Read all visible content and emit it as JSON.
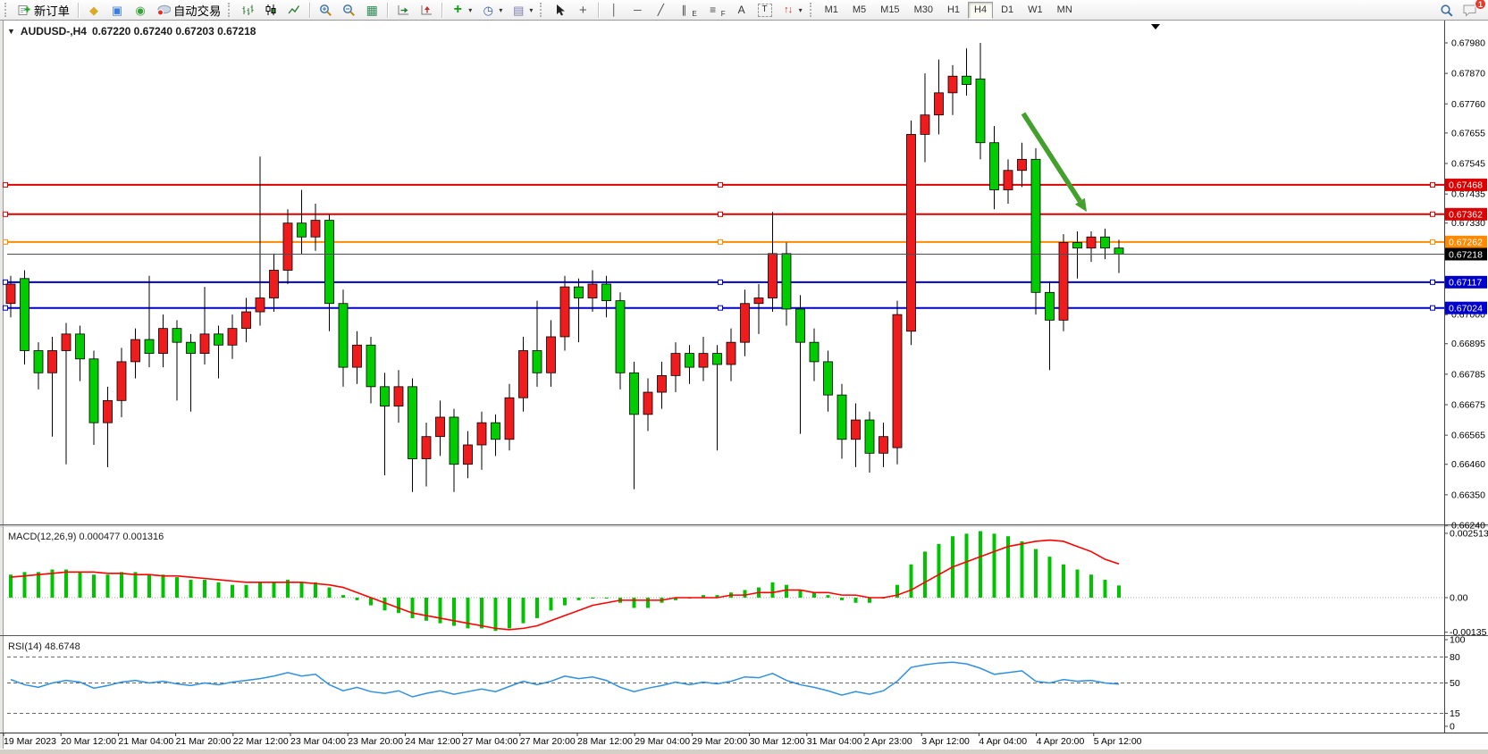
{
  "toolbar": {
    "new_order_label": "新订单",
    "auto_trading_label": "自动交易",
    "timeframes": [
      "M1",
      "M5",
      "M15",
      "M30",
      "H1",
      "H4",
      "D1",
      "W1",
      "MN"
    ],
    "active_timeframe": "H4",
    "notification_count": "1",
    "tool_letters": {
      "channel": "E",
      "fibonacci": "F",
      "text": "A",
      "label": "T"
    }
  },
  "chart": {
    "title_symbol": "AUDUSD-,H4",
    "title_ohlc": "0.67220 0.67240 0.67203 0.67218"
  },
  "indicators": {
    "macd_label": "MACD(12,26,9) 0.000477 0.001316",
    "rsi_label": "RSI(14) 48.6748"
  },
  "chart_data": {
    "type": "candlestick",
    "symbol": "AUDUSD-",
    "period": "H4",
    "current_bar": {
      "open": 0.6722,
      "high": 0.6724,
      "low": 0.67203,
      "close": 0.67218
    },
    "price_axis_ticks": [
      "0.67980",
      "0.67870",
      "0.67760",
      "0.67655",
      "0.67545",
      "0.67435",
      "0.67330",
      "0.67000",
      "0.66895",
      "0.66785",
      "0.66675",
      "0.66565",
      "0.66460",
      "0.66350",
      "0.66240"
    ],
    "time_axis_labels": [
      "19 Mar 2023",
      "20 Mar 12:00",
      "21 Mar 04:00",
      "21 Mar 20:00",
      "22 Mar 12:00",
      "23 Mar 04:00",
      "23 Mar 20:00",
      "24 Mar 12:00",
      "27 Mar 04:00",
      "27 Mar 20:00",
      "28 Mar 12:00",
      "29 Mar 04:00",
      "29 Mar 20:00",
      "30 Mar 12:00",
      "31 Mar 04:00",
      "2 Apr 23:00",
      "3 Apr 12:00",
      "4 Apr 04:00",
      "4 Apr 20:00",
      "5 Apr 12:00"
    ],
    "colors": {
      "bull": "#ee1c1c",
      "bear": "#0c0",
      "wick": "#000000",
      "resistance": "#dd0000",
      "pivot": "#ff8a00",
      "support": "#0000cc",
      "price_line": "#4d4d4d",
      "macd_histogram": "#00c400",
      "macd_signal": "#ff0000",
      "rsi_line": "#3090e0",
      "arrow": "#44a02c"
    },
    "candles": [
      [
        0.6704,
        0.6714,
        0.6699,
        0.6711
      ],
      [
        0.6713,
        0.6716,
        0.6682,
        0.6687
      ],
      [
        0.6687,
        0.669,
        0.6673,
        0.6679
      ],
      [
        0.6679,
        0.6692,
        0.6656,
        0.6687
      ],
      [
        0.6687,
        0.6697,
        0.6646,
        0.6693
      ],
      [
        0.6693,
        0.6696,
        0.6676,
        0.6684
      ],
      [
        0.6684,
        0.6687,
        0.6653,
        0.6661
      ],
      [
        0.6661,
        0.6674,
        0.6645,
        0.6669
      ],
      [
        0.6669,
        0.6688,
        0.6663,
        0.6683
      ],
      [
        0.6683,
        0.6695,
        0.6677,
        0.6691
      ],
      [
        0.6691,
        0.6714,
        0.6681,
        0.6686
      ],
      [
        0.6686,
        0.67,
        0.6681,
        0.6695
      ],
      [
        0.6695,
        0.6698,
        0.6669,
        0.669
      ],
      [
        0.669,
        0.6693,
        0.6665,
        0.6686
      ],
      [
        0.6686,
        0.671,
        0.6682,
        0.6693
      ],
      [
        0.6693,
        0.6696,
        0.6677,
        0.6689
      ],
      [
        0.6689,
        0.67,
        0.6684,
        0.6695
      ],
      [
        0.6695,
        0.6706,
        0.669,
        0.6701
      ],
      [
        0.6701,
        0.6757,
        0.6696,
        0.6706
      ],
      [
        0.6706,
        0.6722,
        0.6701,
        0.6716
      ],
      [
        0.6716,
        0.6738,
        0.6711,
        0.6733
      ],
      [
        0.6733,
        0.6745,
        0.6722,
        0.6728
      ],
      [
        0.6728,
        0.674,
        0.6723,
        0.6734
      ],
      [
        0.6734,
        0.6736,
        0.6694,
        0.6704
      ],
      [
        0.6704,
        0.6709,
        0.6674,
        0.6681
      ],
      [
        0.6681,
        0.6694,
        0.6675,
        0.6689
      ],
      [
        0.6689,
        0.6692,
        0.6668,
        0.6674
      ],
      [
        0.6674,
        0.6679,
        0.6642,
        0.6667
      ],
      [
        0.6667,
        0.668,
        0.6661,
        0.6674
      ],
      [
        0.6674,
        0.6677,
        0.6636,
        0.6648
      ],
      [
        0.6648,
        0.6661,
        0.6638,
        0.6656
      ],
      [
        0.6656,
        0.6669,
        0.6649,
        0.6663
      ],
      [
        0.6663,
        0.6666,
        0.6636,
        0.6646
      ],
      [
        0.6646,
        0.6658,
        0.6641,
        0.6653
      ],
      [
        0.6653,
        0.6665,
        0.6644,
        0.6661
      ],
      [
        0.6661,
        0.6664,
        0.6649,
        0.6655
      ],
      [
        0.6655,
        0.6675,
        0.6651,
        0.667
      ],
      [
        0.667,
        0.6692,
        0.6665,
        0.6687
      ],
      [
        0.6687,
        0.6705,
        0.6674,
        0.6679
      ],
      [
        0.6679,
        0.6698,
        0.6674,
        0.6692
      ],
      [
        0.6692,
        0.6714,
        0.6687,
        0.671
      ],
      [
        0.671,
        0.6713,
        0.669,
        0.6706
      ],
      [
        0.6706,
        0.6716,
        0.6701,
        0.6711
      ],
      [
        0.6711,
        0.6714,
        0.6699,
        0.6705
      ],
      [
        0.6705,
        0.6708,
        0.6673,
        0.6679
      ],
      [
        0.6679,
        0.6683,
        0.6637,
        0.6664
      ],
      [
        0.6664,
        0.6677,
        0.6658,
        0.6672
      ],
      [
        0.6672,
        0.6683,
        0.6666,
        0.6678
      ],
      [
        0.6678,
        0.669,
        0.6672,
        0.6686
      ],
      [
        0.6686,
        0.6689,
        0.6675,
        0.6681
      ],
      [
        0.6681,
        0.6692,
        0.6676,
        0.6686
      ],
      [
        0.6686,
        0.6689,
        0.6651,
        0.6682
      ],
      [
        0.6682,
        0.6695,
        0.6676,
        0.669
      ],
      [
        0.669,
        0.6709,
        0.6685,
        0.6704
      ],
      [
        0.6704,
        0.6711,
        0.6693,
        0.6706
      ],
      [
        0.6706,
        0.6737,
        0.6701,
        0.6722
      ],
      [
        0.6722,
        0.6726,
        0.6696,
        0.6702
      ],
      [
        0.6702,
        0.6707,
        0.6657,
        0.669
      ],
      [
        0.669,
        0.6695,
        0.6676,
        0.6683
      ],
      [
        0.6683,
        0.6687,
        0.6665,
        0.6671
      ],
      [
        0.6671,
        0.6675,
        0.6648,
        0.6655
      ],
      [
        0.6655,
        0.6668,
        0.6645,
        0.6662
      ],
      [
        0.6662,
        0.6665,
        0.6643,
        0.665
      ],
      [
        0.665,
        0.6661,
        0.6645,
        0.6656
      ],
      [
        0.6652,
        0.6705,
        0.6646,
        0.67
      ],
      [
        0.6694,
        0.677,
        0.6689,
        0.6765
      ],
      [
        0.6765,
        0.6787,
        0.6755,
        0.6772
      ],
      [
        0.6772,
        0.6792,
        0.6765,
        0.678
      ],
      [
        0.678,
        0.679,
        0.6772,
        0.6786
      ],
      [
        0.6786,
        0.6796,
        0.6779,
        0.6783
      ],
      [
        0.6785,
        0.6798,
        0.6756,
        0.6762
      ],
      [
        0.6762,
        0.6768,
        0.6738,
        0.6745
      ],
      [
        0.6745,
        0.6756,
        0.674,
        0.6752
      ],
      [
        0.6752,
        0.6762,
        0.6746,
        0.6756
      ],
      [
        0.6756,
        0.676,
        0.67,
        0.6708
      ],
      [
        0.6708,
        0.6712,
        0.668,
        0.6698
      ],
      [
        0.6698,
        0.6729,
        0.6694,
        0.6726
      ],
      [
        0.6726,
        0.673,
        0.6713,
        0.6724
      ],
      [
        0.6724,
        0.673,
        0.6719,
        0.6728
      ],
      [
        0.6728,
        0.6731,
        0.672,
        0.6724
      ],
      [
        0.6724,
        0.6727,
        0.6715,
        0.67218
      ]
    ],
    "horizontal_lines": [
      {
        "price": 0.67468,
        "hex": "#dd0000",
        "badge_text": "0.67468"
      },
      {
        "price": 0.67362,
        "hex": "#dd0000",
        "badge_text": "0.67362"
      },
      {
        "price": 0.67262,
        "hex": "#ff8a00",
        "badge_text": "0.67262"
      },
      {
        "price": 0.67117,
        "hex": "#0000cc",
        "badge_text": "0.67117"
      },
      {
        "price": 0.67024,
        "hex": "#0000cc",
        "badge_text": "0.67024"
      }
    ],
    "current_price": {
      "value": 0.67218,
      "badge_text": "0.67218",
      "badge_hex": "#000000"
    },
    "trend_arrow": {
      "from": [
        1145,
        104
      ],
      "to": [
        1216,
        214
      ],
      "hex": "#44a02c"
    },
    "macd": {
      "name": "MACD",
      "params": "12,26,9",
      "value": 0.000477,
      "signal_value": 0.001316,
      "axis_ticks": [
        "0.002513",
        "0.00",
        "-0.00135"
      ],
      "histogram": [
        0.0009,
        0.001,
        0.001,
        0.0011,
        0.0011,
        0.001,
        0.0009,
        0.0009,
        0.001,
        0.001,
        0.0009,
        0.0009,
        0.0008,
        0.0007,
        0.0007,
        0.0006,
        0.0005,
        0.0005,
        0.0006,
        0.0006,
        0.0007,
        0.0006,
        0.0006,
        0.0004,
        0.0001,
        -0.0001,
        -0.0003,
        -0.0005,
        -0.0006,
        -0.0008,
        -0.0009,
        -0.001,
        -0.0011,
        -0.0012,
        -0.0012,
        -0.0013,
        -0.0012,
        -0.001,
        -0.0008,
        -0.0005,
        -0.0003,
        -0.0001,
        0.0,
        0.0,
        -0.0002,
        -0.0004,
        -0.0004,
        -0.0002,
        -0.0001,
        0.0,
        0.0001,
        0.0001,
        0.0002,
        0.0003,
        0.0004,
        0.0006,
        0.0005,
        0.0003,
        0.0002,
        0.0001,
        -0.0001,
        -0.0002,
        -0.0002,
        0.0,
        0.0005,
        0.0013,
        0.0018,
        0.0021,
        0.0024,
        0.0025,
        0.0026,
        0.0025,
        0.0024,
        0.0022,
        0.0019,
        0.0016,
        0.0013,
        0.0011,
        0.0009,
        0.0007,
        0.000477
      ],
      "signal": [
        0.0008,
        0.00085,
        0.0009,
        0.00095,
        0.001,
        0.001,
        0.001,
        0.00095,
        0.00095,
        0.0009,
        0.0009,
        0.00085,
        0.00085,
        0.0008,
        0.00075,
        0.0007,
        0.00065,
        0.0006,
        0.0006,
        0.0006,
        0.0006,
        0.0006,
        0.00055,
        0.0005,
        0.0004,
        0.0002,
        0.0,
        -0.0002,
        -0.0004,
        -0.0006,
        -0.0007,
        -0.0008,
        -0.0009,
        -0.001,
        -0.0011,
        -0.0012,
        -0.00125,
        -0.0012,
        -0.0011,
        -0.0009,
        -0.0007,
        -0.0005,
        -0.0003,
        -0.0002,
        -0.0001,
        -0.0001,
        -0.0001,
        -0.0001,
        0.0,
        0.0,
        0.0,
        0.0,
        0.0001,
        0.0001,
        0.0002,
        0.0002,
        0.0003,
        0.0003,
        0.0002,
        0.0002,
        0.0001,
        0.0001,
        0.0,
        0.0,
        0.0001,
        0.0003,
        0.0006,
        0.0009,
        0.0012,
        0.0014,
        0.0016,
        0.0018,
        0.002,
        0.0021,
        0.0022,
        0.00225,
        0.0022,
        0.002,
        0.0018,
        0.0015,
        0.001316
      ]
    },
    "rsi": {
      "name": "RSI",
      "params": "14",
      "value": 48.6748,
      "axis_ticks": [
        "100",
        "80",
        "50",
        "15",
        "0"
      ],
      "levels": [
        80,
        50,
        15
      ],
      "values": [
        54,
        48,
        45,
        50,
        53,
        51,
        44,
        47,
        51,
        53,
        50,
        52,
        49,
        47,
        50,
        48,
        51,
        53,
        55,
        58,
        62,
        58,
        60,
        48,
        41,
        45,
        40,
        38,
        41,
        34,
        38,
        41,
        37,
        40,
        43,
        40,
        46,
        52,
        48,
        52,
        58,
        55,
        57,
        53,
        45,
        40,
        44,
        47,
        51,
        48,
        51,
        49,
        52,
        57,
        56,
        61,
        53,
        48,
        45,
        41,
        36,
        40,
        37,
        41,
        52,
        68,
        71,
        73,
        74,
        72,
        67,
        60,
        62,
        64,
        52,
        50,
        54,
        52,
        53,
        50,
        48.67
      ]
    }
  }
}
